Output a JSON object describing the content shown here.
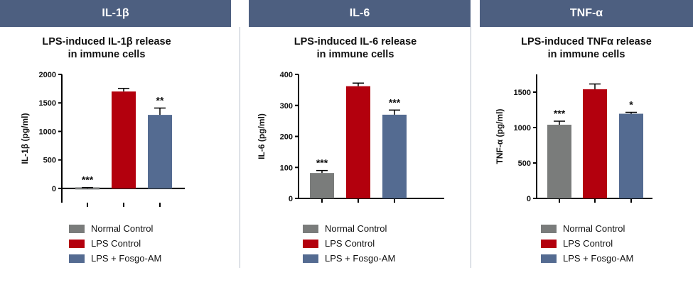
{
  "colors": {
    "header": "#4d5f80",
    "normal": "#7a7c7b",
    "lps": "#b3000d",
    "fosgo": "#546b91"
  },
  "chart_data": [
    {
      "type": "bar",
      "header": "IL-1β",
      "title_line1": "LPS-induced IL-1β release",
      "title_line2": "in immune cells",
      "xlabel": "",
      "ylabel": "IL-1β (pg/ml)",
      "ylim": [
        -250,
        2000
      ],
      "yticks": [
        0,
        500,
        1000,
        1500,
        2000
      ],
      "ytick_labels": [
        "0",
        "500",
        "1000",
        "1500",
        "2000"
      ],
      "categories": [
        "Normal Control",
        "LPS Control",
        "LPS + Fosgo-AM"
      ],
      "values": [
        0,
        1700,
        1290
      ],
      "errors": [
        15,
        55,
        120
      ],
      "significance": [
        "***",
        "",
        "**"
      ],
      "zero_line": true
    },
    {
      "type": "bar",
      "header": "IL-6",
      "title_line1": "LPS-induced IL-6 release",
      "title_line2": "in immune cells",
      "xlabel": "",
      "ylabel": "IL-6 (pg/ml)",
      "ylim": [
        0,
        400
      ],
      "yticks": [
        0,
        100,
        200,
        300,
        400
      ],
      "ytick_labels": [
        "0",
        "100",
        "200",
        "300",
        "400"
      ],
      "categories": [
        "Normal Control",
        "LPS Control",
        "LPS + Fosgo-AM"
      ],
      "values": [
        82,
        362,
        270
      ],
      "errors": [
        8,
        10,
        15
      ],
      "significance": [
        "***",
        "",
        "***"
      ],
      "zero_line": false
    },
    {
      "type": "bar",
      "header": "TNF-α",
      "title_line1": "LPS-induced TNFα release",
      "title_line2": "in immune cells",
      "xlabel": "",
      "ylabel": "TNF-α (pg/ml)",
      "ylim": [
        0,
        1750
      ],
      "yticks": [
        0,
        500,
        1000,
        1500
      ],
      "ytick_labels": [
        "0",
        "500",
        "1000",
        "1500"
      ],
      "categories": [
        "Normal Control",
        "LPS Control",
        "LPS + Fosgo-AM"
      ],
      "values": [
        1040,
        1540,
        1195
      ],
      "errors": [
        50,
        75,
        20
      ],
      "significance": [
        "***",
        "",
        "*"
      ],
      "zero_line": false
    }
  ]
}
